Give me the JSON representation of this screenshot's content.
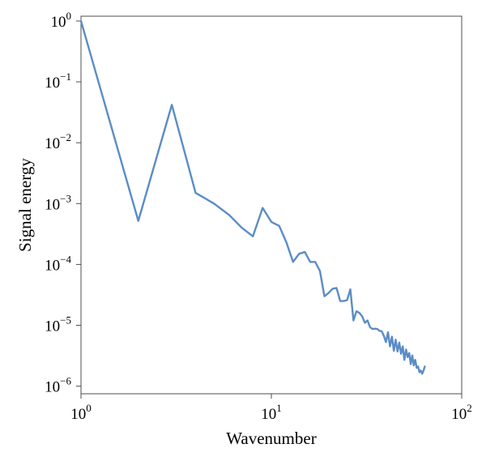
{
  "chart_data": {
    "type": "line",
    "title": "",
    "xlabel": "Wavenumber",
    "ylabel": "Signal energy",
    "xscale": "log",
    "yscale": "log",
    "xlim": [
      1,
      100
    ],
    "ylim": [
      7.5e-07,
      1.2
    ],
    "grid": false,
    "line_color": "#5b8cc6",
    "x_ticks": [
      {
        "value": 1,
        "base": "10",
        "exp": "0"
      },
      {
        "value": 10,
        "base": "10",
        "exp": "1"
      },
      {
        "value": 100,
        "base": "10",
        "exp": "2"
      }
    ],
    "y_ticks": [
      {
        "value": 1,
        "base": "10",
        "exp": "0"
      },
      {
        "value": 0.1,
        "base": "10",
        "exp": "−1"
      },
      {
        "value": 0.01,
        "base": "10",
        "exp": "−2"
      },
      {
        "value": 0.001,
        "base": "10",
        "exp": "−3"
      },
      {
        "value": 0.0001,
        "base": "10",
        "exp": "−4"
      },
      {
        "value": 1e-05,
        "base": "10",
        "exp": "−5"
      },
      {
        "value": 1e-06,
        "base": "10",
        "exp": "−6"
      }
    ],
    "series": [
      {
        "points": [
          [
            1,
            1.0
          ],
          [
            2,
            0.00052
          ],
          [
            3,
            0.042
          ],
          [
            4,
            0.0015
          ],
          [
            5,
            0.001
          ],
          [
            6,
            0.00065
          ],
          [
            7,
            0.0004
          ],
          [
            8,
            0.00029
          ],
          [
            9,
            0.00085
          ],
          [
            10,
            0.0005
          ],
          [
            11,
            0.00043
          ],
          [
            12,
            0.00023
          ],
          [
            13,
            0.00011
          ],
          [
            14,
            0.00015
          ],
          [
            15,
            0.00016
          ],
          [
            16,
            0.00011
          ],
          [
            17,
            0.00011
          ],
          [
            18,
            7.8e-05
          ],
          [
            19,
            3e-05
          ],
          [
            20,
            3.4e-05
          ],
          [
            21,
            4e-05
          ],
          [
            22,
            4.1e-05
          ],
          [
            23,
            2.5e-05
          ],
          [
            24,
            2.5e-05
          ],
          [
            25,
            2.6e-05
          ],
          [
            26,
            3.9e-05
          ],
          [
            27,
            1.2e-05
          ],
          [
            28,
            1.7e-05
          ],
          [
            29,
            1.6e-05
          ],
          [
            30,
            1.4e-05
          ],
          [
            31,
            1.1e-05
          ],
          [
            32,
            1.2e-05
          ],
          [
            33,
            9.3e-06
          ],
          [
            34,
            8.7e-06
          ],
          [
            35,
            8.8e-06
          ],
          [
            36,
            8.7e-06
          ],
          [
            37,
            8.1e-06
          ],
          [
            38,
            8e-06
          ],
          [
            39,
            6.7e-06
          ],
          [
            40,
            5.3e-06
          ],
          [
            41,
            7.7e-06
          ],
          [
            42,
            4.5e-06
          ],
          [
            43,
            6.5e-06
          ],
          [
            44,
            3.8e-06
          ],
          [
            45,
            5.8e-06
          ],
          [
            46,
            3.7e-06
          ],
          [
            47,
            5.2e-06
          ],
          [
            48,
            3.4e-06
          ],
          [
            49,
            4.5e-06
          ],
          [
            50,
            2.7e-06
          ],
          [
            51,
            4e-06
          ],
          [
            52,
            3e-06
          ],
          [
            53,
            3.5e-06
          ],
          [
            54,
            2.3e-06
          ],
          [
            55,
            3.2e-06
          ],
          [
            56,
            2.2e-06
          ],
          [
            57,
            2.7e-06
          ],
          [
            58,
            2e-06
          ],
          [
            59,
            2.1e-06
          ],
          [
            60,
            1.7e-06
          ],
          [
            61,
            1.8e-06
          ],
          [
            62,
            1.6e-06
          ],
          [
            63,
            1.8e-06
          ],
          [
            64,
            2.1e-06
          ]
        ]
      }
    ]
  }
}
